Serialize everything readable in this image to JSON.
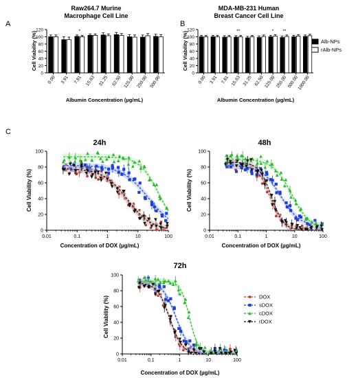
{
  "panel_labels": [
    "A",
    "B",
    "C"
  ],
  "legend_bars": [
    "Alb-NPs",
    "rAlb-NPs"
  ],
  "legend_lines": [
    "DOX",
    "sDOX",
    "cDOX",
    "rDOX"
  ],
  "colors": {
    "DOX": "#c0392b",
    "sDOX": "#1f3fd6",
    "cDOX": "#2eb82e",
    "rDOX": "#111111",
    "bar_fill_1": "#000000",
    "bar_fill_2": "#ffffff",
    "band_DOX": "#f3b3b3",
    "band_sDOX": "#a9b8f0",
    "band_cDOX": "#b7ecb7",
    "band_rDOX": "#c8c8c8"
  },
  "chart_data": [
    {
      "id": "A",
      "type": "bar",
      "title": [
        "Raw264.7 Murine",
        "Macrophage Cell  Line"
      ],
      "xlabel": "Albumin Concentration (µg/mL)",
      "ylabel": "Cell Viability (%)",
      "ylim": [
        0,
        120
      ],
      "yticks": [
        0,
        20,
        40,
        60,
        80,
        100,
        120
      ],
      "categories": [
        "0.00",
        "3.91",
        "7.81",
        "15.63",
        "31.25",
        "62.50",
        "125.00",
        "250.00",
        "500.00"
      ],
      "series": [
        {
          "name": "Alb-NPs",
          "values": [
            100,
            92,
            101,
            104,
            105,
            106,
            100,
            99,
            101
          ],
          "errors": [
            5,
            8,
            4,
            4,
            6,
            6,
            6,
            6,
            6
          ]
        },
        {
          "name": "rAlb-NPs",
          "values": [
            100,
            92,
            100,
            104,
            103,
            104,
            99,
            103,
            100
          ],
          "errors": [
            5,
            7,
            4,
            4,
            5,
            5,
            6,
            6,
            6
          ]
        }
      ],
      "annotations": [
        {
          "category": "7.81",
          "text": "*"
        }
      ]
    },
    {
      "id": "B",
      "type": "bar",
      "title": [
        "MDA-MB-231 Human",
        "Breast Cancer Cell Line"
      ],
      "xlabel": "Albumin Concentration (µg/mL)",
      "ylabel": "Cell Viability (%)",
      "ylim": [
        0,
        120
      ],
      "yticks": [
        0,
        20,
        40,
        60,
        80,
        100,
        120
      ],
      "categories": [
        "0.00",
        "3.91",
        "7.81",
        "15.63",
        "31.25",
        "62.50",
        "125.00",
        "250.00",
        "500.00",
        "1000.00"
      ],
      "series": [
        {
          "name": "Alb-NPs",
          "values": [
            100,
            100,
            99,
            99,
            97,
            98,
            100,
            98,
            100,
            101
          ],
          "errors": [
            4,
            4,
            4,
            4,
            4,
            4,
            4,
            4,
            4,
            4
          ]
        },
        {
          "name": "rAlb-NPs",
          "values": [
            100,
            100,
            100,
            100,
            100,
            101,
            102,
            101,
            102,
            103
          ],
          "errors": [
            4,
            4,
            4,
            4,
            4,
            4,
            4,
            4,
            4,
            4
          ]
        }
      ],
      "annotations": [
        {
          "category": "15.63",
          "text": "**"
        },
        {
          "category": "125.00",
          "text": "*"
        },
        {
          "category": "250.00",
          "text": "**"
        }
      ]
    },
    {
      "id": "C-24h",
      "type": "scatter",
      "title": "24h",
      "xlabel": "Concentration of DOX (µg/mL)",
      "ylabel": "Cell Viability (%)",
      "xscale": "log",
      "xlim": [
        0.01,
        100
      ],
      "ylim": [
        0,
        100
      ],
      "xticks": [
        0.01,
        0.1,
        1,
        10,
        100
      ],
      "xtick_labels": [
        "0.01",
        "0.1",
        "1",
        "10",
        "100"
      ],
      "yticks": [
        0,
        20,
        40,
        60,
        80,
        100
      ],
      "curves": [
        {
          "name": "DOX",
          "top": 78,
          "bottom": 0,
          "ec50": 4.0,
          "hill": 1.1
        },
        {
          "name": "sDOX",
          "top": 82,
          "bottom": 0,
          "ec50": 22,
          "hill": 1.0
        },
        {
          "name": "cDOX",
          "top": 93,
          "bottom": 0,
          "ec50": 48,
          "hill": 1.4
        },
        {
          "name": "rDOX",
          "top": 78,
          "bottom": 0,
          "ec50": 4.5,
          "hill": 1.1
        }
      ]
    },
    {
      "id": "C-48h",
      "type": "scatter",
      "title": "48h",
      "xlabel": "Concentration of DOX (µg/mL)",
      "ylabel": "Cell Viability (%)",
      "xscale": "log",
      "xlim": [
        0.01,
        100
      ],
      "ylim": [
        0,
        100
      ],
      "xticks": [
        0.01,
        0.1,
        1,
        10,
        100
      ],
      "xtick_labels": [
        "0.01",
        "0.1",
        "1",
        "10",
        "100"
      ],
      "yticks": [
        0,
        20,
        40,
        60,
        80,
        100
      ],
      "curves": [
        {
          "name": "DOX",
          "top": 82,
          "bottom": 0,
          "ec50": 1.4,
          "hill": 2.0
        },
        {
          "name": "sDOX",
          "top": 82,
          "bottom": 5,
          "ec50": 3.2,
          "hill": 1.3
        },
        {
          "name": "cDOX",
          "top": 90,
          "bottom": 0,
          "ec50": 8.0,
          "hill": 1.3
        },
        {
          "name": "rDOX",
          "top": 86,
          "bottom": 0,
          "ec50": 1.5,
          "hill": 2.0
        }
      ]
    },
    {
      "id": "C-72h",
      "type": "scatter",
      "title": "72h",
      "xlabel": "Concentration of DOX (µg/mL)",
      "ylabel": "Cell Viability (%)",
      "xscale": "log",
      "xlim": [
        0.01,
        100
      ],
      "ylim": [
        0,
        100
      ],
      "xticks": [
        0.01,
        0.1,
        1,
        10,
        100
      ],
      "xtick_labels": [
        "0.01",
        "0.1",
        "1",
        "10",
        "100"
      ],
      "yticks": [
        0,
        20,
        40,
        60,
        80,
        100
      ],
      "curves": [
        {
          "name": "DOX",
          "top": 90,
          "bottom": 0,
          "ec50": 0.45,
          "hill": 2.0
        },
        {
          "name": "sDOX",
          "top": 92,
          "bottom": 0,
          "ec50": 0.75,
          "hill": 1.8
        },
        {
          "name": "cDOX",
          "top": 92,
          "bottom": 0,
          "ec50": 2.2,
          "hill": 2.8
        },
        {
          "name": "rDOX",
          "top": 90,
          "bottom": 0,
          "ec50": 0.45,
          "hill": 2.0
        }
      ]
    }
  ]
}
